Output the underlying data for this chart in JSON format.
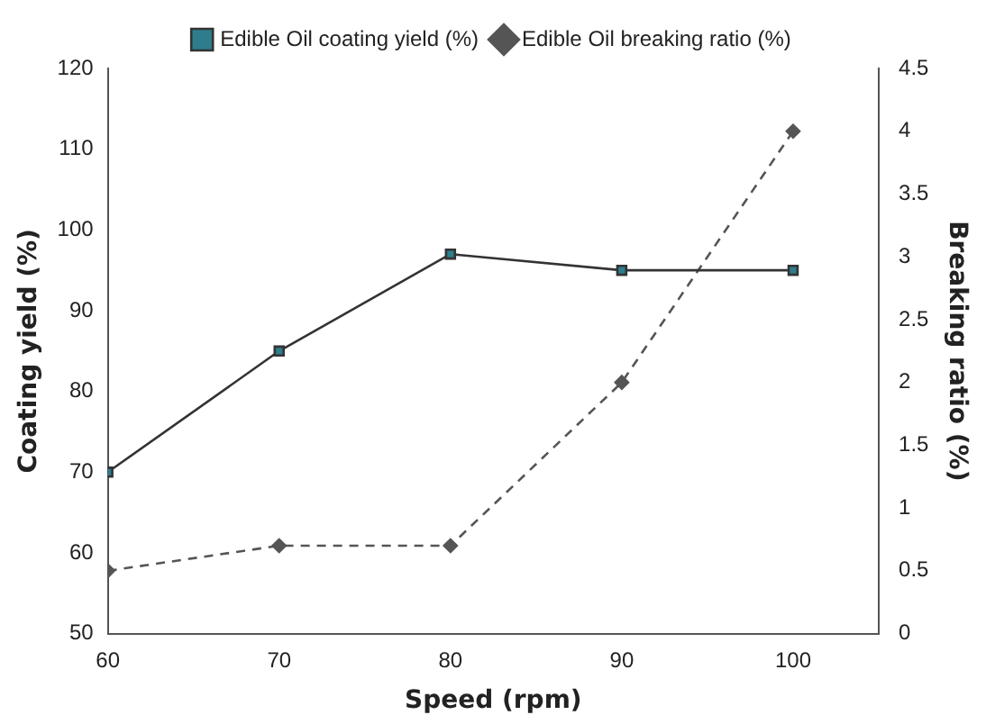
{
  "chart_data": {
    "type": "line",
    "xlabel": "Speed (rpm)",
    "ylabel": "Coating yield (%)",
    "y2label": "Breaking ratio (%)",
    "x": [
      60,
      70,
      80,
      90,
      100
    ],
    "xlim": [
      60,
      105
    ],
    "xticks": [
      60,
      70,
      80,
      90,
      100
    ],
    "ylim": [
      50,
      120
    ],
    "yticks": [
      50,
      60,
      70,
      80,
      90,
      100,
      110,
      120
    ],
    "y2lim": [
      0,
      4.5
    ],
    "y2ticks": [
      0,
      {
        "value": 0.5,
        "label": "0.5"
      },
      1,
      {
        "value": 1.5,
        "label": "1.5"
      },
      2,
      {
        "value": 2.5,
        "label": "2.5"
      },
      3,
      {
        "value": 3.5,
        "label": "3.5"
      },
      4,
      {
        "value": 4.5,
        "label": "4.5"
      }
    ],
    "series": [
      {
        "name": "Edible Oil coating yield (%)",
        "color": "#333333",
        "values": [
          70,
          85,
          97,
          95,
          95
        ],
        "marker": "square",
        "line_style": "solid"
      },
      {
        "name": "Edible Oil breaking ratio (%)",
        "color": "#555555",
        "values": [
          0.5,
          0.7,
          0.7,
          2,
          4
        ],
        "axis": "y2",
        "marker": "diamond",
        "line_style": "dashed"
      }
    ],
    "grid": false,
    "legend": "top"
  }
}
